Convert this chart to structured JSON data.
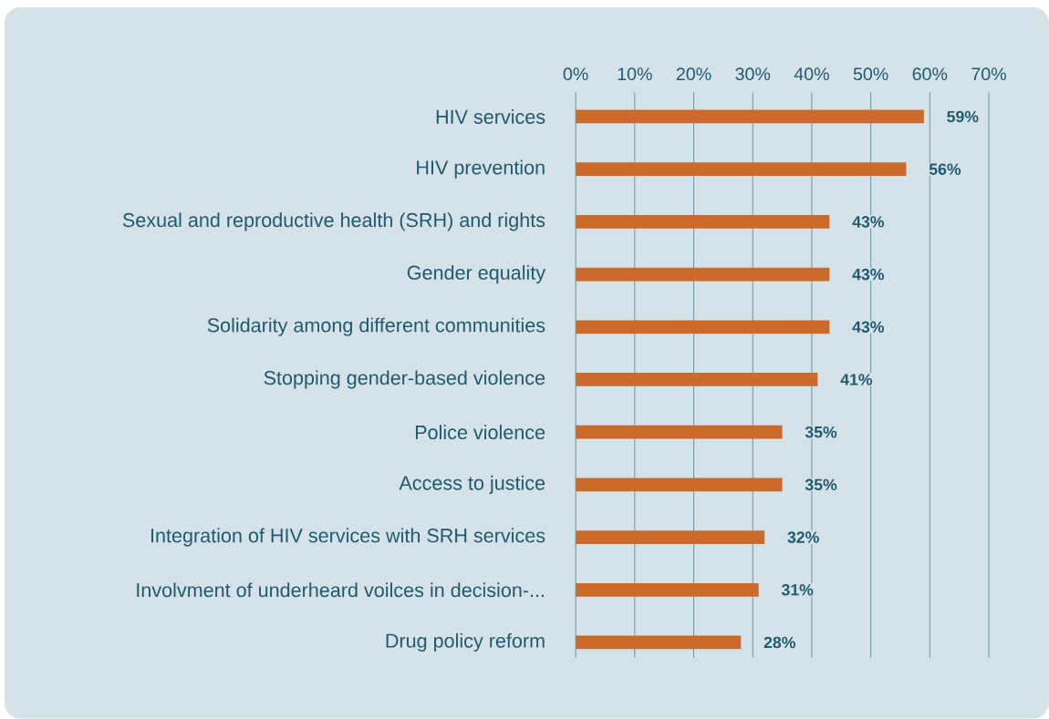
{
  "chart_data": {
    "type": "bar",
    "orientation": "horizontal",
    "categories": [
      "HIV services",
      "HIV prevention",
      "Sexual and reproductive health (SRH) and rights",
      "Gender equality",
      "Solidarity among different communities",
      "Stopping gender-based violence",
      "Police violence",
      "Access to justice",
      "Integration of HIV services with SRH services",
      "Involvment of underheard voilces in decision-...",
      "Drug policy reform"
    ],
    "values": [
      59,
      56,
      43,
      43,
      43,
      41,
      35,
      35,
      32,
      31,
      28
    ],
    "value_labels": [
      "59%",
      "56%",
      "43%",
      "43%",
      "43%",
      "41%",
      "35%",
      "35%",
      "32%",
      "31%",
      "28%"
    ],
    "color": "#cc6a2c",
    "xlim": [
      0,
      70
    ],
    "xticks": [
      {
        "value": 0,
        "label": "0%"
      },
      {
        "value": 10,
        "label": "10%"
      },
      {
        "value": 20,
        "label": "20%"
      },
      {
        "value": 30,
        "label": "30%"
      },
      {
        "value": 40,
        "label": "40%"
      },
      {
        "value": 50,
        "label": "50%"
      },
      {
        "value": 60,
        "label": "60%"
      },
      {
        "value": 70,
        "label": "70%"
      }
    ],
    "grid": "x"
  }
}
